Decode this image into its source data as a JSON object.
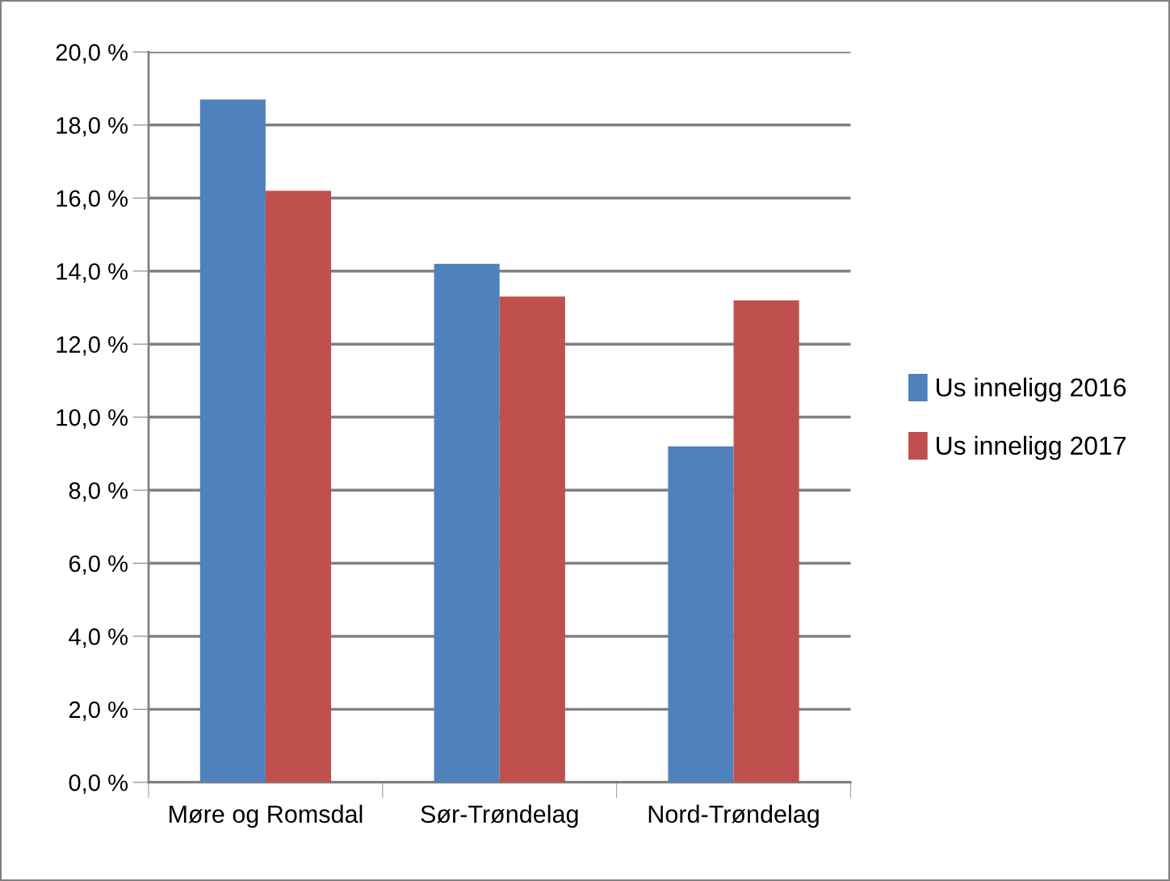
{
  "chart_data": {
    "type": "bar",
    "categories": [
      "Møre og Romsdal",
      "Sør-Trøndelag",
      "Nord-Trøndelag"
    ],
    "series": [
      {
        "name": "Us inneligg 2016",
        "color": "#4f81bd",
        "values": [
          18.7,
          14.2,
          9.2
        ]
      },
      {
        "name": "Us inneligg 2017",
        "color": "#c0504d",
        "values": [
          16.2,
          13.3,
          13.2
        ]
      }
    ],
    "ylim": [
      0,
      20
    ],
    "yticks": [
      {
        "value": 0,
        "label": "0,0 %"
      },
      {
        "value": 2,
        "label": "2,0 %"
      },
      {
        "value": 4,
        "label": "4,0 %"
      },
      {
        "value": 6,
        "label": "6,0 %"
      },
      {
        "value": 8,
        "label": "8,0 %"
      },
      {
        "value": 10,
        "label": "10,0 %"
      },
      {
        "value": 12,
        "label": "12,0 %"
      },
      {
        "value": 14,
        "label": "14,0 %"
      },
      {
        "value": 16,
        "label": "16,0 %"
      },
      {
        "value": 18,
        "label": "18,0 %"
      },
      {
        "value": 20,
        "label": "20,0 %"
      }
    ],
    "grid": "y",
    "legend": "right"
  }
}
